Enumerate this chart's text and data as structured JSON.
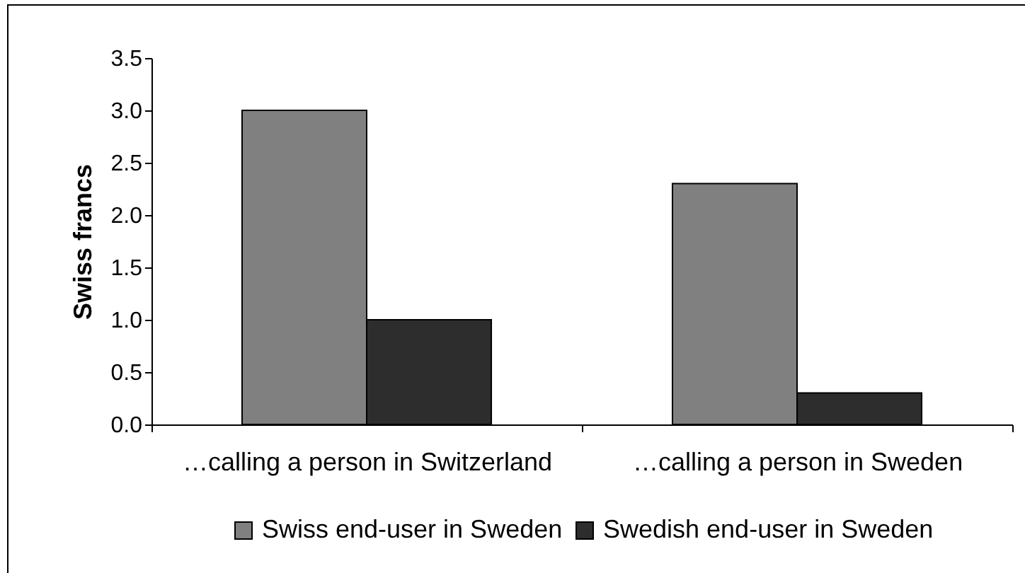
{
  "chart_data": {
    "type": "bar",
    "categories": [
      "…calling a person in Switzerland",
      "…calling a person in Sweden"
    ],
    "series": [
      {
        "name": "Swiss end-user in Sweden",
        "color": "#808080",
        "values": [
          3.0,
          2.3
        ]
      },
      {
        "name": "Swedish end-user in Sweden",
        "color": "#2d2d2d",
        "values": [
          1.0,
          0.3
        ]
      }
    ],
    "ylabel": "Swiss francs",
    "ylim": [
      0,
      3.5
    ],
    "yticks": [
      {
        "value": 0,
        "label": "0.0"
      },
      0.5,
      {
        "value": 1,
        "label": "1.0"
      },
      1.5,
      {
        "value": 2,
        "label": "2.0"
      },
      2.5,
      {
        "value": 3,
        "label": "3.0"
      },
      3.5
    ],
    "grid": false,
    "legend": "bottom"
  }
}
